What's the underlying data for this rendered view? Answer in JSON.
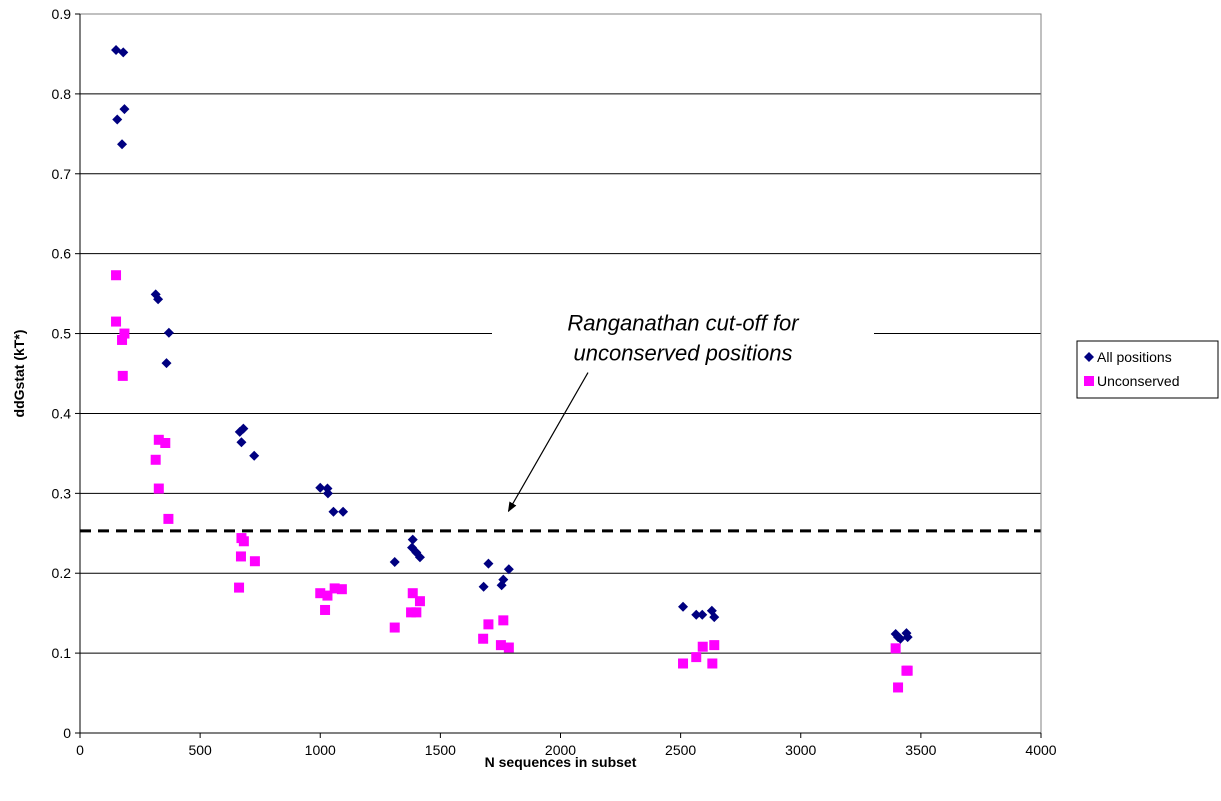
{
  "chart_data": {
    "type": "scatter",
    "title": "",
    "xlabel": "N sequences in subset",
    "ylabel": "ddGstat (kT*)",
    "xlim": [
      0,
      4000
    ],
    "ylim": [
      0,
      0.9
    ],
    "x_ticks": [
      0,
      500,
      1000,
      1500,
      2000,
      2500,
      3000,
      3500,
      4000
    ],
    "y_ticks": [
      "0",
      "0.1",
      "0.2",
      "0.3",
      "0.4",
      "0.5",
      "0.6",
      "0.7",
      "0.8",
      "0.9"
    ],
    "grid": "horizontal",
    "legend_position": "right",
    "series": [
      {
        "name": "All positions",
        "marker": "diamond",
        "color": "#000080",
        "points": [
          [
            150,
            0.855
          ],
          [
            180,
            0.852
          ],
          [
            155,
            0.768
          ],
          [
            185,
            0.781
          ],
          [
            175,
            0.737
          ],
          [
            315,
            0.549
          ],
          [
            325,
            0.543
          ],
          [
            370,
            0.501
          ],
          [
            360,
            0.463
          ],
          [
            665,
            0.377
          ],
          [
            680,
            0.381
          ],
          [
            672,
            0.364
          ],
          [
            725,
            0.347
          ],
          [
            1000,
            0.307
          ],
          [
            1030,
            0.306
          ],
          [
            1032,
            0.3
          ],
          [
            1055,
            0.277
          ],
          [
            1095,
            0.277
          ],
          [
            1310,
            0.214
          ],
          [
            1385,
            0.242
          ],
          [
            1382,
            0.232
          ],
          [
            1400,
            0.226
          ],
          [
            1415,
            0.22
          ],
          [
            1680,
            0.183
          ],
          [
            1700,
            0.212
          ],
          [
            1755,
            0.185
          ],
          [
            1762,
            0.192
          ],
          [
            1785,
            0.205
          ],
          [
            2510,
            0.158
          ],
          [
            2565,
            0.148
          ],
          [
            2590,
            0.148
          ],
          [
            2630,
            0.153
          ],
          [
            2640,
            0.145
          ],
          [
            3395,
            0.124
          ],
          [
            3405,
            0.12
          ],
          [
            3415,
            0.118
          ],
          [
            3440,
            0.125
          ],
          [
            3445,
            0.12
          ]
        ]
      },
      {
        "name": "Unconserved",
        "marker": "square",
        "color": "#FF00FF",
        "points": [
          [
            150,
            0.573
          ],
          [
            150,
            0.515
          ],
          [
            175,
            0.492
          ],
          [
            185,
            0.5
          ],
          [
            178,
            0.447
          ],
          [
            328,
            0.367
          ],
          [
            355,
            0.363
          ],
          [
            315,
            0.342
          ],
          [
            328,
            0.306
          ],
          [
            368,
            0.268
          ],
          [
            672,
            0.244
          ],
          [
            682,
            0.24
          ],
          [
            670,
            0.221
          ],
          [
            728,
            0.215
          ],
          [
            662,
            0.182
          ],
          [
            1000,
            0.175
          ],
          [
            1030,
            0.172
          ],
          [
            1060,
            0.181
          ],
          [
            1090,
            0.18
          ],
          [
            1020,
            0.154
          ],
          [
            1310,
            0.132
          ],
          [
            1385,
            0.175
          ],
          [
            1415,
            0.165
          ],
          [
            1378,
            0.151
          ],
          [
            1400,
            0.151
          ],
          [
            1678,
            0.118
          ],
          [
            1700,
            0.136
          ],
          [
            1762,
            0.141
          ],
          [
            1752,
            0.11
          ],
          [
            1785,
            0.107
          ],
          [
            2510,
            0.087
          ],
          [
            2565,
            0.095
          ],
          [
            2592,
            0.108
          ],
          [
            2632,
            0.087
          ],
          [
            2640,
            0.11
          ],
          [
            3395,
            0.106
          ],
          [
            3405,
            0.057
          ],
          [
            3440,
            0.078
          ],
          [
            3445,
            0.078
          ]
        ]
      }
    ],
    "reference_line": {
      "y": 0.253,
      "style": "dashed"
    },
    "annotation": {
      "lines": [
        "Ranganathan cut-off for",
        "unconserved positions"
      ],
      "arrow_to": [
        1775,
        0.27
      ]
    }
  }
}
